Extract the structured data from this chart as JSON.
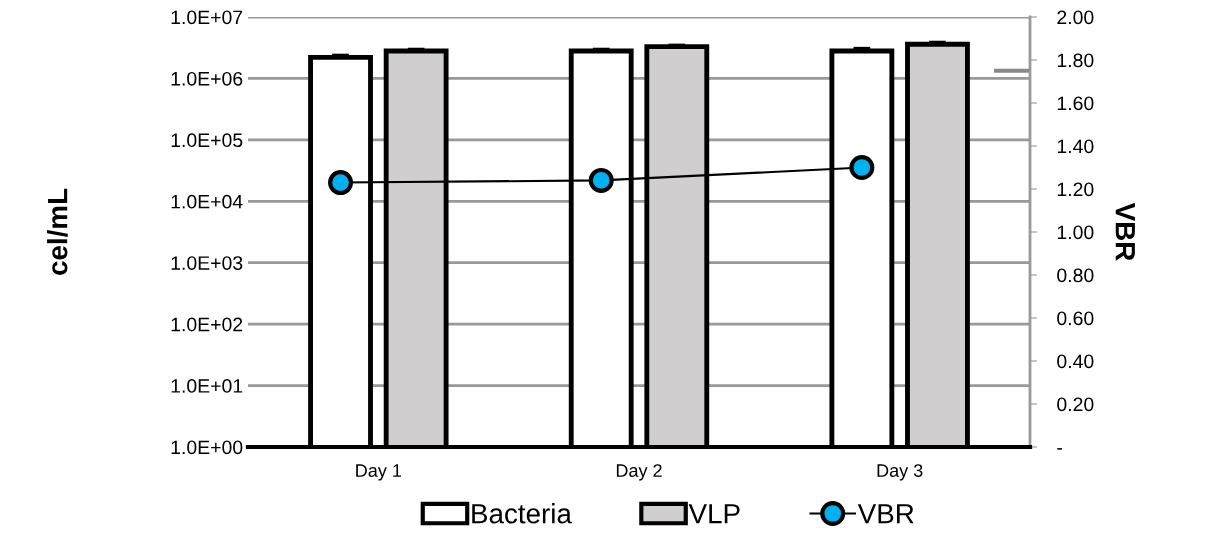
{
  "chart_data": {
    "type": "bar",
    "categories": [
      "Day 1",
      "Day 2",
      "Day 3"
    ],
    "ylabel": "cel/mL",
    "y2label": "VBR",
    "log": "y",
    "ylim": [
      1,
      10000000
    ],
    "yticks": [
      {
        "value": 1,
        "label": "1.0E+00"
      },
      {
        "value": 10,
        "label": "1.0E+01"
      },
      {
        "value": 100,
        "label": "1.0E+02"
      },
      {
        "value": 1000,
        "label": "1.0E+03"
      },
      {
        "value": 10000,
        "label": "1.0E+04"
      },
      {
        "value": 100000,
        "label": "1.0E+05"
      },
      {
        "value": 1000000,
        "label": "1.0E+06"
      },
      {
        "value": 10000000,
        "label": "1.0E+07"
      }
    ],
    "y2lim": [
      0,
      2
    ],
    "y2ticks": [
      {
        "value": 0,
        "label": "-"
      },
      {
        "value": 0.2,
        "label": "0.20"
      },
      {
        "value": 0.4,
        "label": "0.40"
      },
      {
        "value": 0.6,
        "label": "0.60"
      },
      {
        "value": 0.8,
        "label": "0.80"
      },
      {
        "value": 1.0,
        "label": "1.00"
      },
      {
        "value": 1.2,
        "label": "1.20"
      },
      {
        "value": 1.4,
        "label": "1.40"
      },
      {
        "value": 1.6,
        "label": "1.60"
      },
      {
        "value": 1.8,
        "label": "1.80"
      },
      {
        "value": 2.0,
        "label": "2.00"
      }
    ],
    "grid": "y",
    "legend": "bottom",
    "series": [
      {
        "name": "Bacteria",
        "type": "bar",
        "color": "#ffffff",
        "values": [
          2200000,
          2800000,
          2800000
        ],
        "errors": [
          200000,
          200000,
          300000
        ]
      },
      {
        "name": "VLP",
        "type": "bar",
        "color": "#d0cece",
        "values": [
          2800000,
          3300000,
          3600000
        ],
        "errors": [
          200000,
          200000,
          300000
        ]
      },
      {
        "name": "VBR",
        "type": "line",
        "axis": "y2",
        "color": "#00b0f0",
        "marker": "circle",
        "line_style": "solid",
        "values": [
          1.23,
          1.24,
          1.3
        ]
      }
    ]
  }
}
